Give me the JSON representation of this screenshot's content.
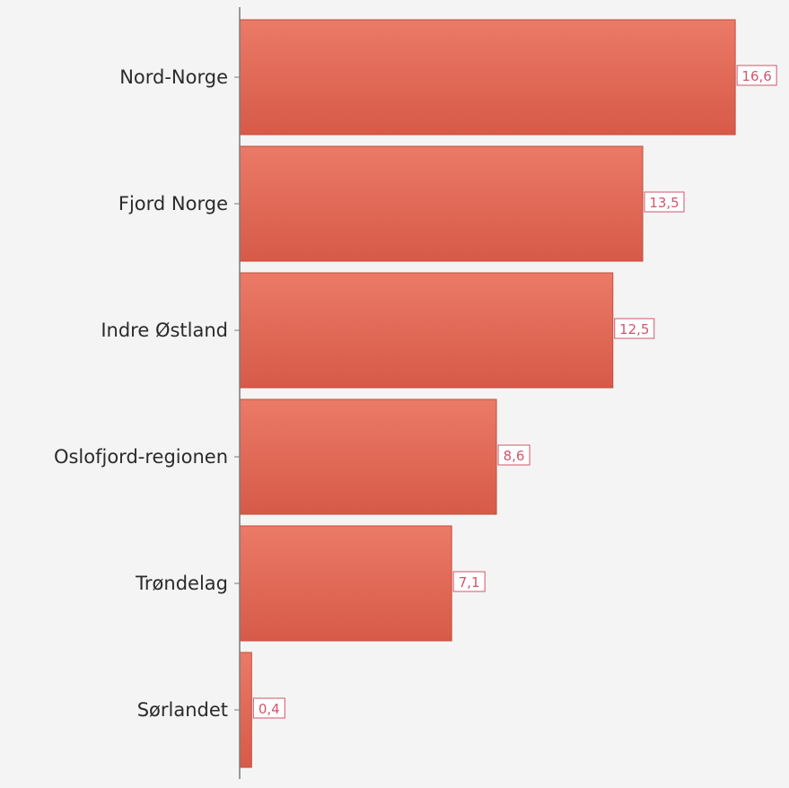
{
  "chart_data": {
    "type": "bar",
    "orientation": "horizontal",
    "categories": [
      "Nord-Norge",
      "Fjord Norge",
      "Indre Østland",
      "Oslofjord-regionen",
      "Trøndelag",
      "Sørlandet"
    ],
    "values": [
      16.6,
      13.5,
      12.5,
      8.6,
      7.1,
      0.4
    ],
    "value_labels": [
      "16,6",
      "13,5",
      "12,5",
      "8,6",
      "7,1",
      "0,4"
    ],
    "title": "",
    "xlabel": "",
    "ylabel": "",
    "xlim": [
      0,
      18.4
    ],
    "grid": false,
    "legend": "none"
  },
  "colors": {
    "background": "#f4f4f4",
    "bar_top": "#ea7a66",
    "bar_bottom": "#d75a48",
    "bar_stroke": "#c64c3b",
    "axis": "#7a7a7a",
    "value_label_text": "#d2566a",
    "value_label_border": "#d2566a",
    "value_label_fill": "#ffffff",
    "category_text": "#2b2b2b"
  }
}
